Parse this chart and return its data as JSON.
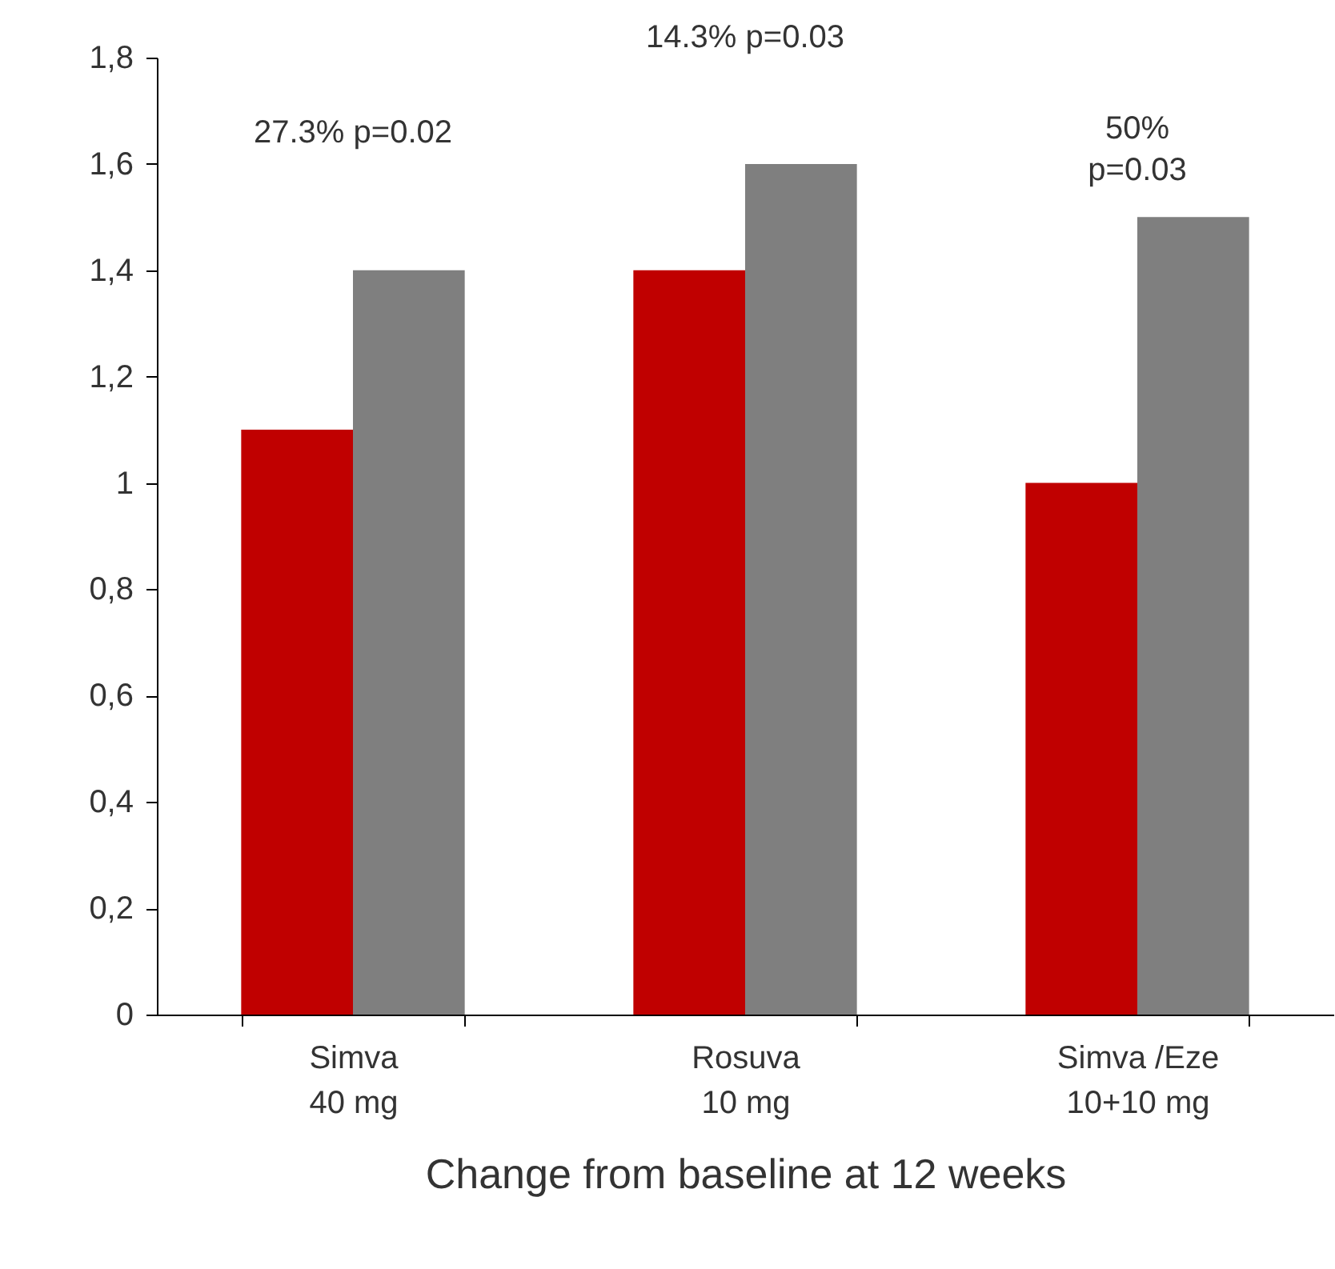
{
  "chart_data": {
    "type": "bar",
    "xlabel": "Change from baseline at 12 weeks",
    "categories": [
      "Simva\n40 mg",
      "Rosuva\n10 mg",
      "Simva /Eze\n10+10 mg"
    ],
    "series": [
      {
        "color": "#c00000",
        "values": [
          1.1,
          1.4,
          1.0
        ]
      },
      {
        "color": "#7f7f7f",
        "values": [
          1.4,
          1.6,
          1.5
        ]
      }
    ],
    "ylim": [
      0,
      1.8
    ],
    "yticks": [
      0,
      {
        "value": 0.2,
        "label": "0,2"
      },
      {
        "value": 0.4,
        "label": "0,4"
      },
      {
        "value": 0.6,
        "label": "0,6"
      },
      {
        "value": 0.8,
        "label": "0,8"
      },
      1,
      {
        "value": 1.2,
        "label": "1,2"
      },
      {
        "value": 1.4,
        "label": "1,4"
      },
      {
        "value": 1.6,
        "label": "1,6"
      },
      {
        "value": 1.8,
        "label": "1,8"
      }
    ],
    "annotations": [
      "27.3% p=0.02",
      "14.3% p=0.03",
      "50%\np=0.03"
    ],
    "grid": false,
    "legend": false
  }
}
